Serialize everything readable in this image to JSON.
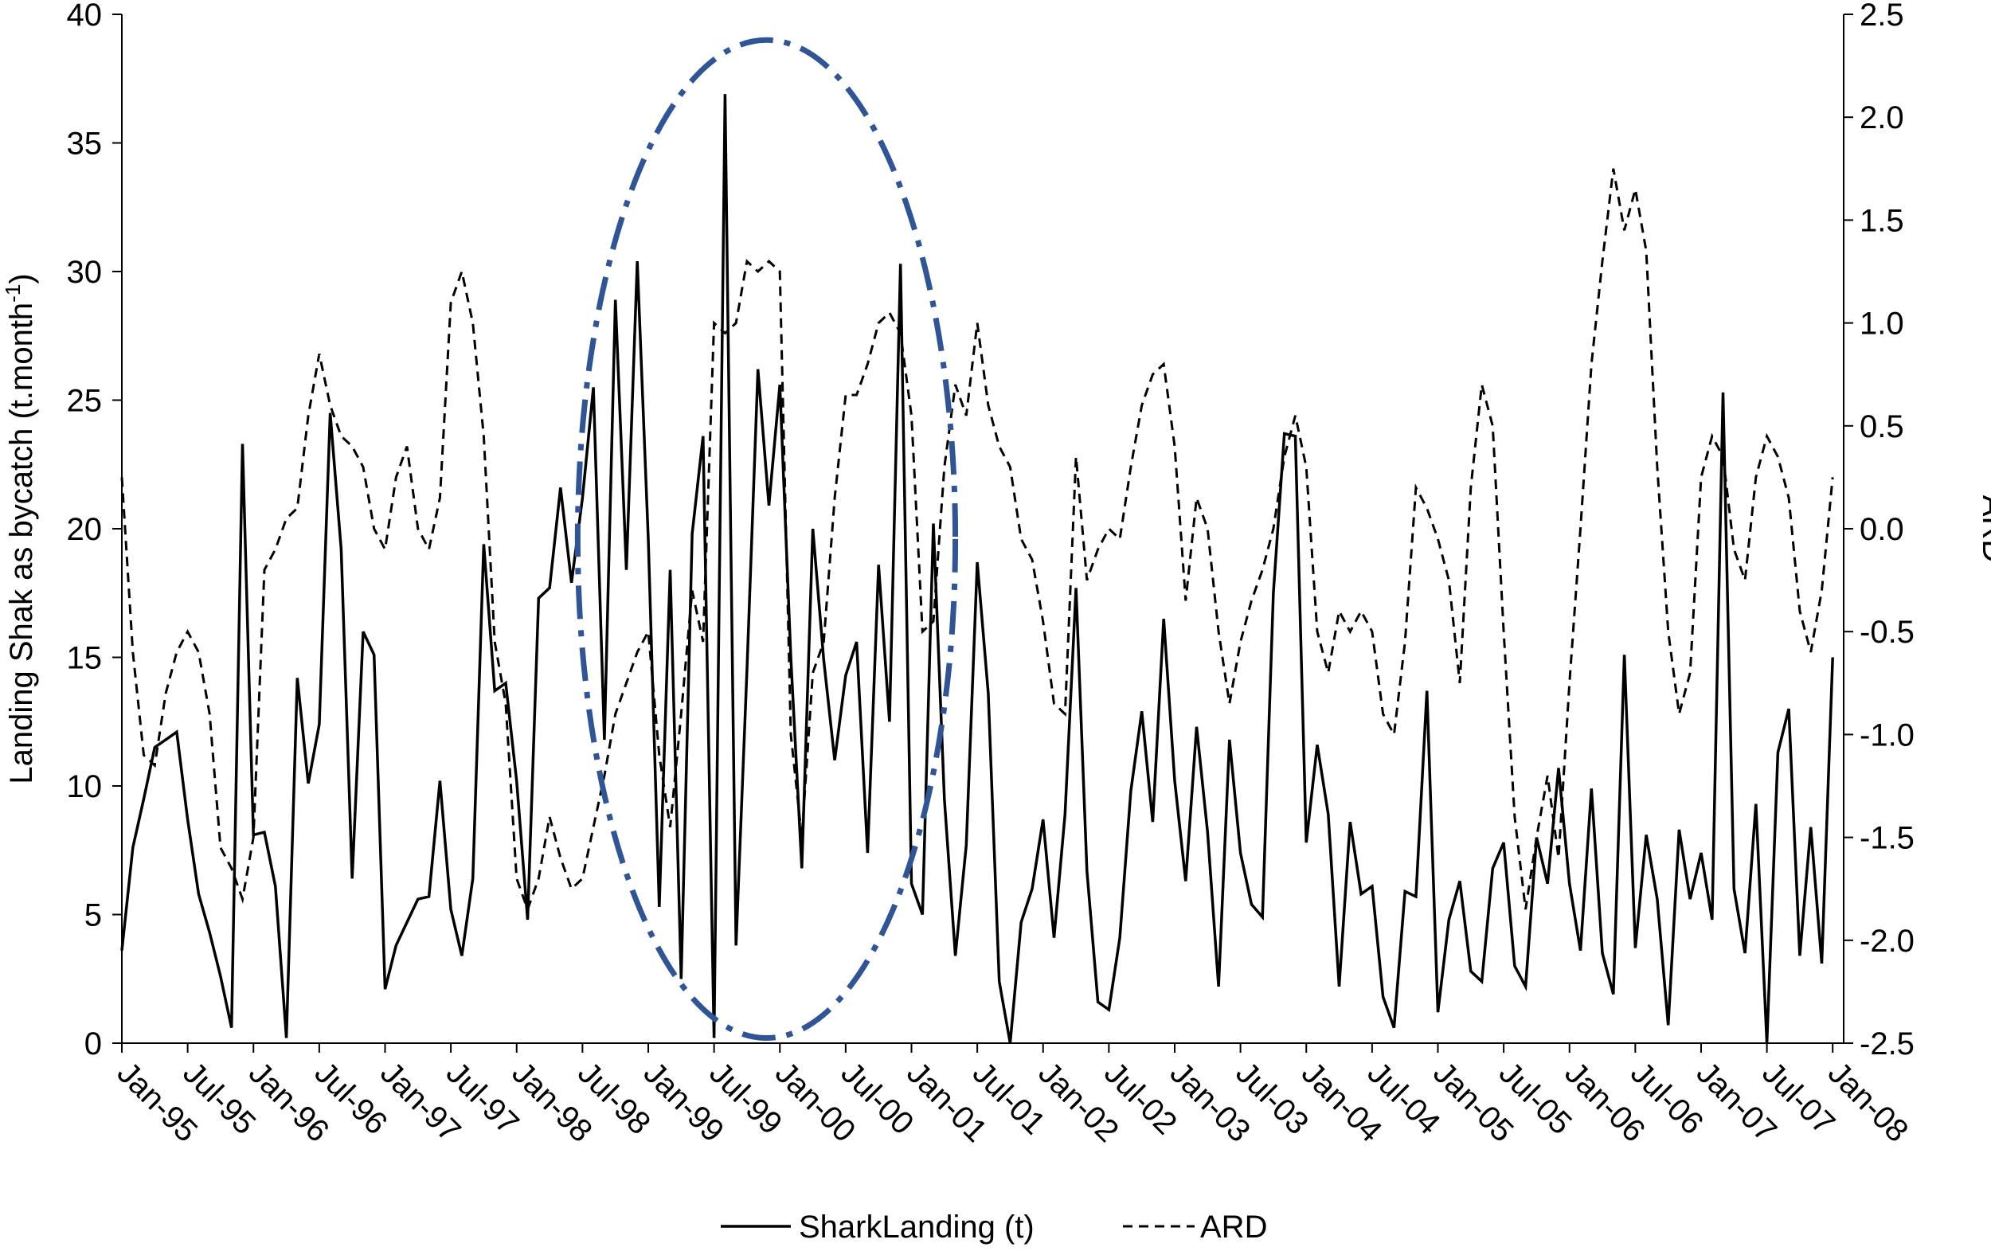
{
  "chart_data": {
    "type": "line",
    "title": "",
    "xlabel": "",
    "ylabel": "Landing Shak as bycatch (t.month⁻¹)",
    "ylabel_main": "Landing Shak as bycatch (t.month",
    "ylabel_sup": "-1",
    "ylabel_close": ")",
    "y2label": "ARD",
    "ylim": [
      0,
      40
    ],
    "y2lim": [
      -2.5,
      2.5
    ],
    "yticks": [
      "0",
      "5",
      "10",
      "15",
      "20",
      "25",
      "30",
      "35",
      "40"
    ],
    "y2ticks": [
      "-2.5",
      "-2.0",
      "-1.5",
      "-1.0",
      "-0.5",
      "0.0",
      "0.5",
      "1.0",
      "1.5",
      "2.0",
      "2.5"
    ],
    "xticks": [
      "Jan-95",
      "Jul-95",
      "Jan-96",
      "Jul-96",
      "Jan-97",
      "Jul-97",
      "Jan-98",
      "Jul-98",
      "Jan-99",
      "Jul-99",
      "Jan-00",
      "Jul-00",
      "Jan-01",
      "Jul-01",
      "Jan-02",
      "Jul-02",
      "Jan-03",
      "Jul-03",
      "Jan-04",
      "Jul-04",
      "Jan-05",
      "Jul-05",
      "Jan-06",
      "Jul-06",
      "Jan-07",
      "Jul-07",
      "Jan-08"
    ],
    "grid": false,
    "legend_position": "bottom",
    "annotation": "dash-dot ellipse highlighting Jan-98 to Jan-01",
    "annotation_color": "#2f5597",
    "series": [
      {
        "name": "SharkLanding (t)",
        "axis": "left",
        "style": "solid",
        "color": "#000000",
        "values": [
          3.6,
          7.6,
          9.5,
          11.5,
          11.8,
          12.1,
          8.7,
          5.8,
          4.3,
          2.6,
          0.6,
          23.3,
          8.1,
          8.2,
          6.1,
          0.2,
          14.2,
          10.1,
          12.4,
          24.5,
          19.2,
          6.4,
          16.0,
          15.1,
          2.1,
          3.8,
          4.7,
          5.6,
          5.7,
          10.2,
          5.2,
          3.4,
          6.4,
          19.4,
          13.7,
          14.0,
          10.2,
          4.8,
          17.3,
          17.7,
          21.6,
          17.9,
          21.2,
          25.5,
          11.8,
          28.9,
          18.4,
          30.4,
          19.6,
          5.3,
          18.4,
          2.5,
          19.8,
          23.6,
          0.2,
          36.9,
          3.8,
          14.5,
          26.2,
          20.9,
          25.6,
          15.0,
          6.8,
          20.0,
          14.9,
          11.0,
          14.3,
          15.6,
          7.4,
          18.6,
          12.5,
          30.3,
          6.2,
          5.0,
          20.2,
          9.5,
          3.4,
          7.7,
          18.7,
          13.6,
          2.4,
          0.0,
          4.7,
          6.0,
          8.7,
          4.1,
          8.9,
          17.7,
          6.7,
          1.6,
          1.3,
          4.1,
          9.8,
          12.9,
          8.6,
          16.5,
          10.2,
          6.3,
          12.3,
          8.2,
          2.2,
          11.8,
          7.4,
          5.4,
          4.9,
          17.5,
          23.7,
          23.6,
          7.8,
          11.6,
          8.9,
          2.2,
          8.6,
          5.8,
          6.1,
          1.8,
          0.6,
          5.9,
          5.7,
          13.7,
          1.2,
          4.8,
          6.3,
          2.8,
          2.4,
          6.8,
          7.8,
          3.0,
          2.2,
          8.0,
          6.2,
          10.7,
          6.2,
          3.6,
          9.9,
          3.5,
          1.9,
          15.1,
          3.7,
          8.1,
          5.6,
          0.7,
          8.3,
          5.6,
          7.4,
          4.8,
          25.3,
          6.0,
          3.5,
          9.3,
          0.0,
          11.3,
          13.0,
          3.4,
          8.4,
          3.1,
          15.0
        ]
      },
      {
        "name": "ARD",
        "axis": "right",
        "style": "dashed",
        "color": "#000000",
        "values": [
          0.25,
          -0.6,
          -1.1,
          -1.15,
          -0.8,
          -0.6,
          -0.5,
          -0.6,
          -0.9,
          -1.55,
          -1.65,
          -1.8,
          -1.5,
          -0.2,
          -0.1,
          0.05,
          0.1,
          0.55,
          0.85,
          0.6,
          0.45,
          0.4,
          0.3,
          0.0,
          -0.1,
          0.25,
          0.4,
          0.0,
          -0.1,
          0.15,
          1.1,
          1.25,
          1.0,
          0.45,
          -0.55,
          -0.85,
          -1.7,
          -1.85,
          -1.7,
          -1.4,
          -1.6,
          -1.75,
          -1.7,
          -1.45,
          -1.2,
          -0.9,
          -0.75,
          -0.6,
          -0.5,
          -1.1,
          -1.45,
          -0.9,
          -0.3,
          -0.55,
          1.0,
          0.95,
          1.0,
          1.3,
          1.25,
          1.3,
          1.25,
          -1.0,
          -1.5,
          -0.7,
          -0.55,
          0.15,
          0.65,
          0.65,
          0.8,
          1.0,
          1.05,
          0.95,
          0.55,
          -0.5,
          -0.45,
          0.3,
          0.7,
          0.55,
          1.0,
          0.6,
          0.4,
          0.3,
          -0.05,
          -0.15,
          -0.45,
          -0.85,
          -0.9,
          0.35,
          -0.25,
          -0.1,
          0.0,
          -0.05,
          0.3,
          0.6,
          0.75,
          0.8,
          0.4,
          -0.35,
          0.15,
          0.0,
          -0.5,
          -0.85,
          -0.55,
          -0.35,
          -0.2,
          0.0,
          0.35,
          0.55,
          0.3,
          -0.5,
          -0.7,
          -0.4,
          -0.5,
          -0.4,
          -0.5,
          -0.9,
          -1.0,
          -0.55,
          0.2,
          0.1,
          -0.05,
          -0.25,
          -0.75,
          0.2,
          0.7,
          0.5,
          -0.5,
          -1.4,
          -1.85,
          -1.5,
          -1.2,
          -1.6,
          -0.75,
          0.0,
          0.8,
          1.3,
          1.75,
          1.45,
          1.65,
          1.35,
          0.3,
          -0.5,
          -0.9,
          -0.7,
          0.25,
          0.45,
          0.35,
          -0.1,
          -0.25,
          0.25,
          0.45,
          0.35,
          0.15,
          -0.4,
          -0.6,
          -0.3,
          0.25
        ]
      }
    ]
  }
}
